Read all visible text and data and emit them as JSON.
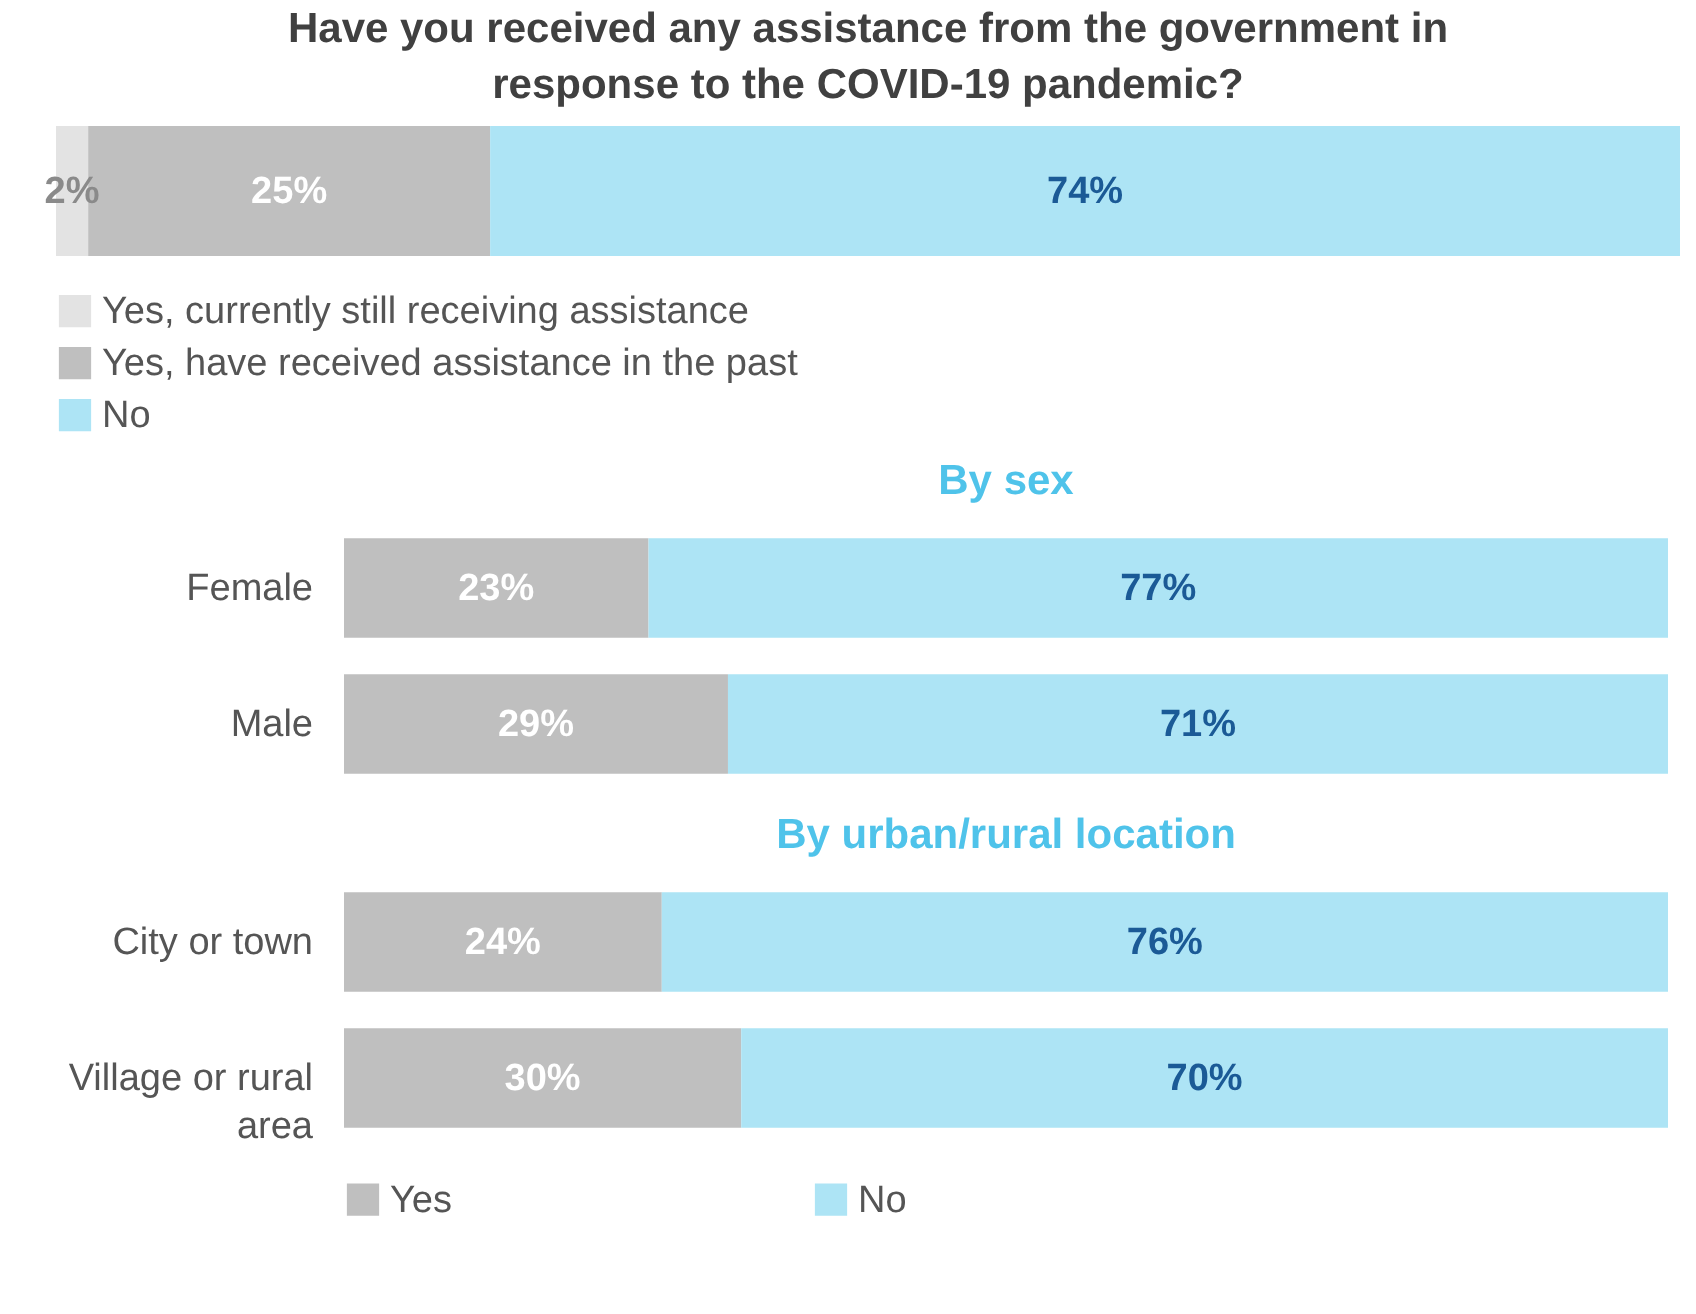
{
  "chart_data": [
    {
      "type": "bar",
      "orientation": "horizontal",
      "stacked": true,
      "title": "Have you received any assistance from the government in response to the COVID-19 pandemic?",
      "categories": [
        null
      ],
      "tick_labels": false,
      "legend": "bottom",
      "series": [
        {
          "name": "Yes, currently still receiving assistance",
          "color": "#e3e3e3",
          "values": [
            2
          ],
          "value_labels": [
            "2%"
          ]
        },
        {
          "name": "Yes, have received assistance in the past",
          "color": "#bfbfbf",
          "values": [
            25
          ],
          "value_labels": [
            "25%"
          ]
        },
        {
          "name": "No",
          "color": "#ade4f5",
          "values": [
            74
          ],
          "value_labels": [
            "74%"
          ]
        }
      ]
    },
    {
      "type": "bar",
      "orientation": "horizontal",
      "stacked": true,
      "title": "By sex",
      "categories": [
        "Female",
        "Male"
      ],
      "tick_labels": "y",
      "series": [
        {
          "color": "#bfbfbf",
          "values": [
            23,
            29
          ],
          "value_labels": [
            "23%",
            "29%"
          ]
        },
        {
          "color": "#ade4f5",
          "values": [
            77,
            71
          ],
          "value_labels": [
            "77%",
            "71%"
          ]
        }
      ]
    },
    {
      "type": "bar",
      "orientation": "horizontal",
      "stacked": true,
      "title": "By urban/rural location",
      "categories": [
        "City or town",
        "Village or rural area"
      ],
      "tick_labels": "y",
      "legend": "bottom",
      "series": [
        {
          "name": "Yes",
          "color": "#bfbfbf",
          "values": [
            24,
            30
          ],
          "value_labels": [
            "24%",
            "30%"
          ]
        },
        {
          "name": "No",
          "color": "#ade4f5",
          "values": [
            76,
            70
          ],
          "value_labels": [
            "76%",
            "70%"
          ]
        }
      ]
    }
  ]
}
